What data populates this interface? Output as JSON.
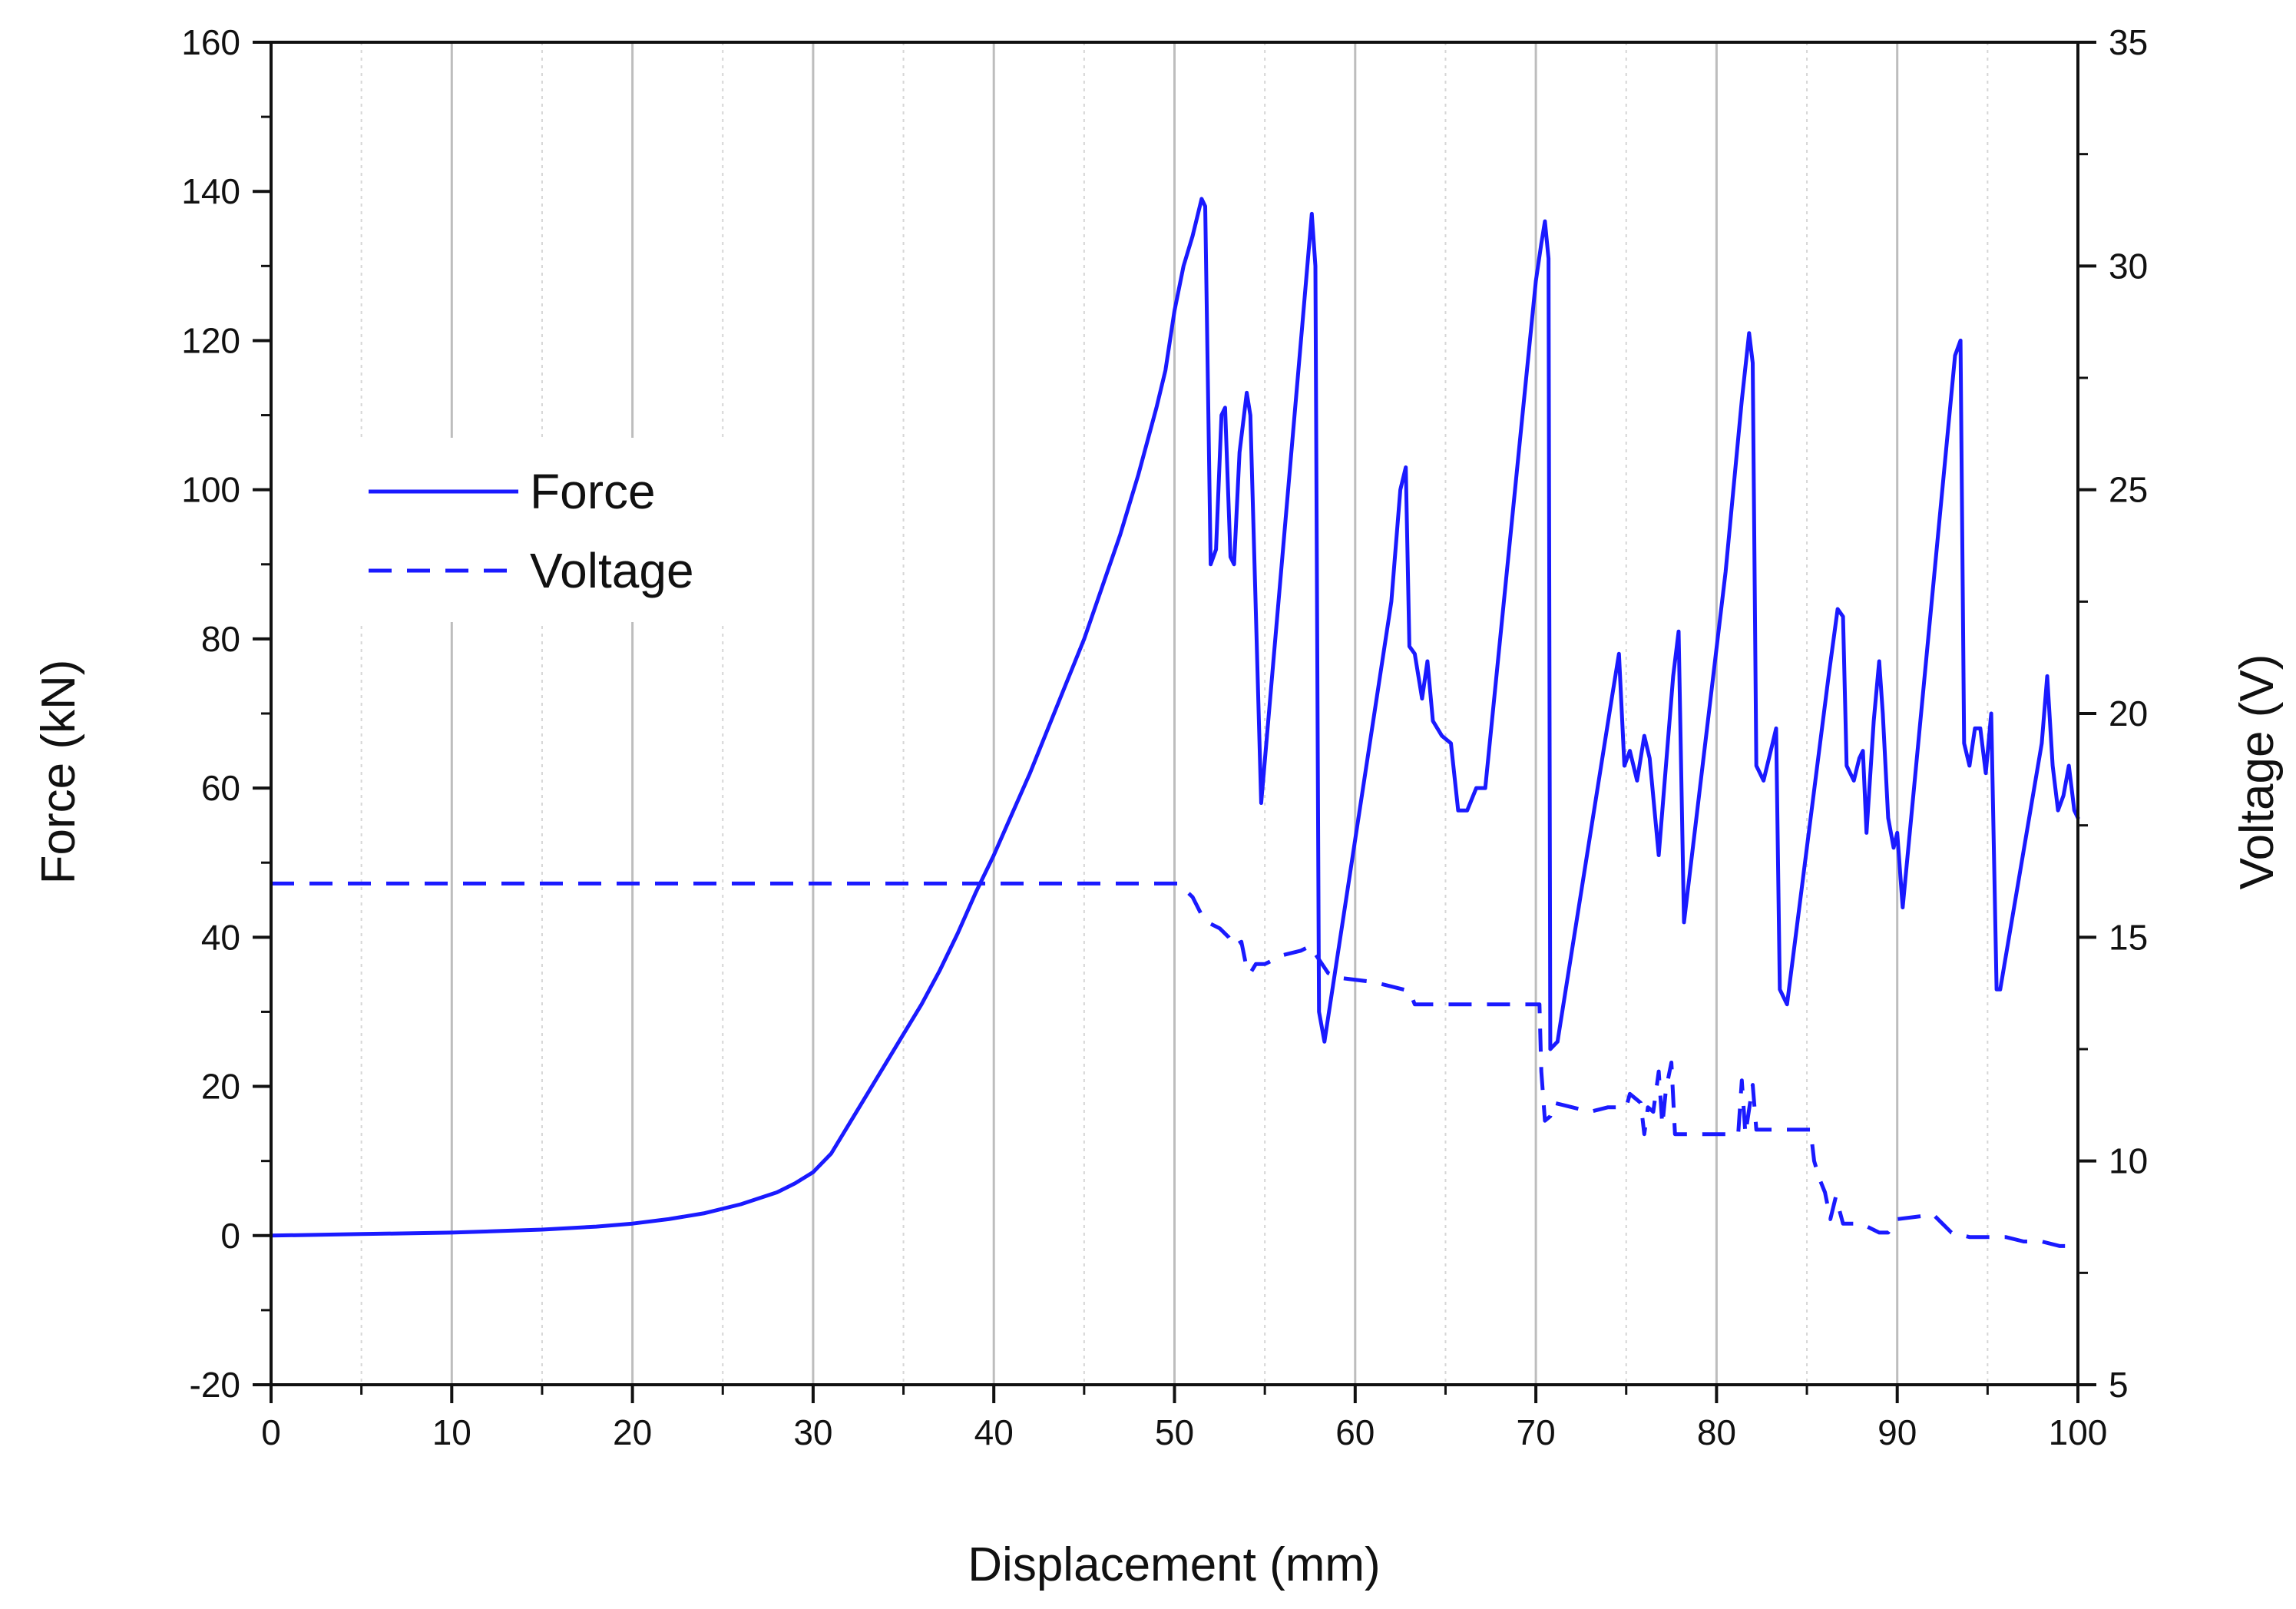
{
  "chart_data": {
    "type": "line",
    "title": "",
    "xlabel": "Displacement (mm)",
    "ylabel": "Force (kN)",
    "y2label": "Voltage (V)",
    "xlim": [
      0,
      100
    ],
    "ylim": [
      -20,
      160
    ],
    "y2lim": [
      5,
      35
    ],
    "x_ticks": [
      0,
      10,
      20,
      30,
      40,
      50,
      60,
      70,
      80,
      90,
      100
    ],
    "y_ticks": [
      -20,
      0,
      20,
      40,
      60,
      80,
      100,
      120,
      140,
      160
    ],
    "y2_ticks": [
      5,
      10,
      15,
      20,
      25,
      30,
      35
    ],
    "grid": "vertical",
    "legend_position": "upper-left",
    "colors": {
      "series": "#1a1aff",
      "axis": "#111111",
      "grid_major": "#bdbdbd",
      "grid_minor": "#d6d6d6"
    },
    "series": [
      {
        "name": "Force",
        "axis": "left",
        "style": "solid",
        "points": [
          [
            0,
            0
          ],
          [
            5,
            0.2
          ],
          [
            10,
            0.4
          ],
          [
            15,
            0.8
          ],
          [
            18,
            1.2
          ],
          [
            20,
            1.6
          ],
          [
            22,
            2.2
          ],
          [
            24,
            3
          ],
          [
            26,
            4.2
          ],
          [
            28,
            5.8
          ],
          [
            29,
            7
          ],
          [
            30,
            8.5
          ],
          [
            31,
            11
          ],
          [
            32,
            15
          ],
          [
            33,
            19
          ],
          [
            34,
            23
          ],
          [
            35,
            27
          ],
          [
            36,
            31
          ],
          [
            37,
            35.5
          ],
          [
            38,
            40.5
          ],
          [
            39,
            46
          ],
          [
            40,
            51
          ],
          [
            41,
            56.5
          ],
          [
            42,
            62
          ],
          [
            43,
            68
          ],
          [
            44,
            74
          ],
          [
            45,
            80
          ],
          [
            46,
            87
          ],
          [
            47,
            94
          ],
          [
            48,
            102
          ],
          [
            49,
            111
          ],
          [
            49.5,
            116
          ],
          [
            50,
            124
          ],
          [
            50.5,
            130
          ],
          [
            51,
            134
          ],
          [
            51.3,
            137
          ],
          [
            51.5,
            139
          ],
          [
            51.7,
            138
          ],
          [
            52.0,
            90
          ],
          [
            52.3,
            92
          ],
          [
            52.6,
            110
          ],
          [
            52.8,
            111
          ],
          [
            53.1,
            91
          ],
          [
            53.3,
            90
          ],
          [
            53.6,
            105
          ],
          [
            54.0,
            113
          ],
          [
            54.2,
            110
          ],
          [
            54.8,
            58
          ],
          [
            57.0,
            120
          ],
          [
            57.6,
            137
          ],
          [
            57.8,
            130
          ],
          [
            58.0,
            30
          ],
          [
            58.3,
            26
          ],
          [
            62.0,
            85
          ],
          [
            62.5,
            100
          ],
          [
            62.8,
            103
          ],
          [
            63.0,
            79
          ],
          [
            63.3,
            78
          ],
          [
            63.7,
            72
          ],
          [
            64.0,
            77
          ],
          [
            64.3,
            69
          ],
          [
            64.8,
            67
          ],
          [
            65.3,
            66
          ],
          [
            65.7,
            57
          ],
          [
            66.2,
            57
          ],
          [
            66.7,
            60
          ],
          [
            67.2,
            60
          ],
          [
            70.0,
            128
          ],
          [
            70.3,
            133
          ],
          [
            70.5,
            136
          ],
          [
            70.7,
            131
          ],
          [
            70.8,
            25
          ],
          [
            71.2,
            26
          ],
          [
            74.2,
            72
          ],
          [
            74.6,
            78
          ],
          [
            74.9,
            63
          ],
          [
            75.2,
            65
          ],
          [
            75.6,
            61
          ],
          [
            76.0,
            67
          ],
          [
            76.3,
            64
          ],
          [
            76.8,
            51
          ],
          [
            77.6,
            75
          ],
          [
            77.9,
            81
          ],
          [
            78.2,
            42
          ],
          [
            80.5,
            89
          ],
          [
            81.4,
            112
          ],
          [
            81.8,
            121
          ],
          [
            82.0,
            117
          ],
          [
            82.2,
            63
          ],
          [
            82.6,
            61
          ],
          [
            83.0,
            65
          ],
          [
            83.3,
            68
          ],
          [
            83.5,
            33
          ],
          [
            83.9,
            31
          ],
          [
            86.2,
            75
          ],
          [
            86.7,
            84
          ],
          [
            87.0,
            83
          ],
          [
            87.2,
            63
          ],
          [
            87.6,
            61
          ],
          [
            87.9,
            64
          ],
          [
            88.1,
            65
          ],
          [
            88.3,
            54
          ],
          [
            88.7,
            69
          ],
          [
            89.0,
            77
          ],
          [
            89.2,
            70
          ],
          [
            89.5,
            56
          ],
          [
            89.8,
            52
          ],
          [
            90.0,
            54
          ],
          [
            90.3,
            44
          ],
          [
            93.2,
            118
          ],
          [
            93.5,
            120
          ],
          [
            93.7,
            66
          ],
          [
            94.0,
            63
          ],
          [
            94.3,
            68
          ],
          [
            94.6,
            68
          ],
          [
            94.9,
            62
          ],
          [
            95.2,
            70
          ],
          [
            95.5,
            33
          ],
          [
            95.7,
            33
          ],
          [
            98.0,
            66
          ],
          [
            98.3,
            75
          ],
          [
            98.6,
            63
          ],
          [
            98.9,
            57
          ],
          [
            99.2,
            59
          ],
          [
            99.5,
            63
          ],
          [
            99.8,
            57
          ],
          [
            100,
            56
          ]
        ]
      },
      {
        "name": "Voltage",
        "axis": "right",
        "style": "dashed",
        "points": [
          [
            0,
            16.2
          ],
          [
            50.2,
            16.2
          ],
          [
            51,
            15.9
          ],
          [
            51.5,
            15.5
          ],
          [
            52,
            15.3
          ],
          [
            52.5,
            15.2
          ],
          [
            53,
            15
          ],
          [
            53.3,
            14.8
          ],
          [
            53.7,
            14.9
          ],
          [
            54,
            14.3
          ],
          [
            54.2,
            14.2
          ],
          [
            54.5,
            14.4
          ],
          [
            55,
            14.4
          ],
          [
            56,
            14.6
          ],
          [
            57,
            14.7
          ],
          [
            57.5,
            14.8
          ],
          [
            58.5,
            14.2
          ],
          [
            59,
            14.1
          ],
          [
            61,
            14
          ],
          [
            62,
            13.9
          ],
          [
            63,
            13.8
          ],
          [
            63.3,
            13.5
          ],
          [
            64,
            13.5
          ],
          [
            70.2,
            13.5
          ],
          [
            70.3,
            12
          ],
          [
            70.5,
            10.9
          ],
          [
            70.8,
            11
          ],
          [
            71,
            11.3
          ],
          [
            72,
            11.2
          ],
          [
            73,
            11.1
          ],
          [
            74,
            11.2
          ],
          [
            75,
            11.2
          ],
          [
            75.2,
            11.5
          ],
          [
            75.5,
            11.4
          ],
          [
            75.8,
            11.3
          ],
          [
            76,
            10.6
          ],
          [
            76.2,
            11.2
          ],
          [
            76.5,
            11.1
          ],
          [
            76.8,
            12
          ],
          [
            77.0,
            10.8
          ],
          [
            77.2,
            11.6
          ],
          [
            77.5,
            12.2
          ],
          [
            77.7,
            10.6
          ],
          [
            78,
            10.6
          ],
          [
            79,
            10.6
          ],
          [
            81.2,
            10.6
          ],
          [
            81.4,
            11.8
          ],
          [
            81.6,
            10.6
          ],
          [
            82,
            11.7
          ],
          [
            82.2,
            10.7
          ],
          [
            85.2,
            10.7
          ],
          [
            85.4,
            10
          ],
          [
            85.7,
            9.6
          ],
          [
            86,
            9.3
          ],
          [
            86.3,
            8.7
          ],
          [
            86.6,
            9.2
          ],
          [
            87,
            8.6
          ],
          [
            88,
            8.6
          ],
          [
            89,
            8.4
          ],
          [
            89.5,
            8.4
          ],
          [
            90,
            8.7
          ],
          [
            92,
            8.8
          ],
          [
            92.5,
            8.6
          ],
          [
            93,
            8.4
          ],
          [
            94,
            8.3
          ],
          [
            96,
            8.3
          ],
          [
            97,
            8.2
          ],
          [
            98,
            8.2
          ],
          [
            99,
            8.1
          ],
          [
            100,
            8.1
          ]
        ]
      }
    ]
  }
}
